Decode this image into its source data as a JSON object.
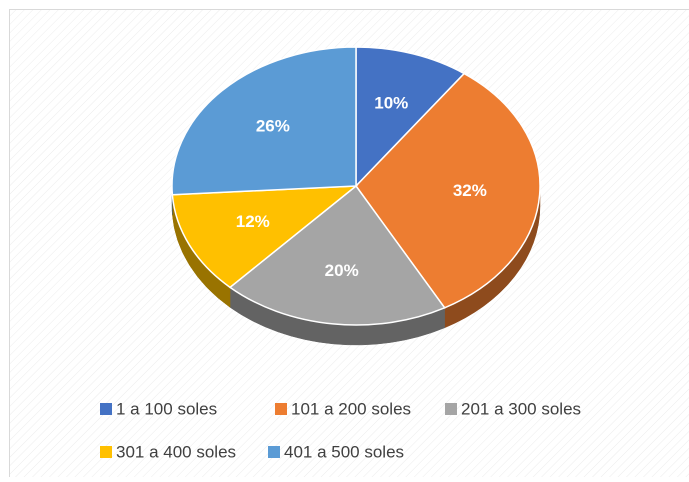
{
  "chart_data": {
    "type": "pie3d",
    "categories": [
      "1 a 100 soles",
      "101 a 200 soles",
      "201 a 300 soles",
      "301 a 400 soles",
      "401 a 500 soles"
    ],
    "values": [
      10,
      32,
      20,
      12,
      26
    ],
    "value_labels": [
      "10%",
      "32%",
      "20%",
      "12%",
      "26%"
    ],
    "colors": [
      "#4472c4",
      "#ed7d31",
      "#a5a5a5",
      "#ffc000",
      "#5b9bd5"
    ],
    "legend": "bottom"
  }
}
